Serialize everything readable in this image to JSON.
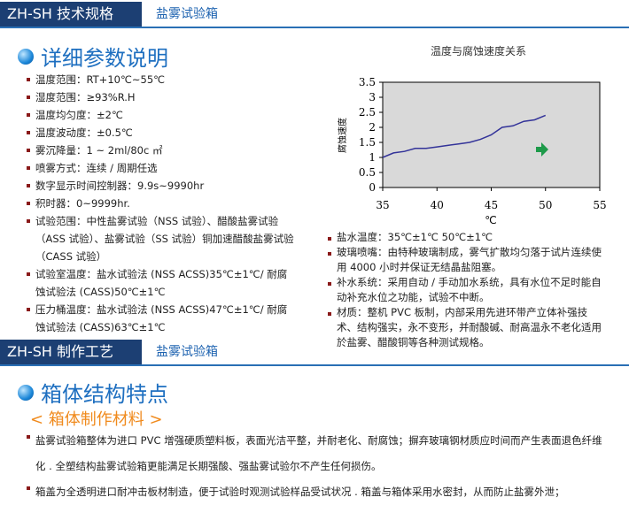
{
  "section1": {
    "tab": "ZH-SH 技术规格",
    "subtitle": "盐雾试验箱",
    "heading": "详细参数说明",
    "specs": [
      "温度范围：RT+10℃~55℃",
      "湿度范围：≥93%R.H",
      "温度均匀度：±2℃",
      "温度波动度：±0.5℃",
      "雾沉降量：1 ~ 2ml/80c ㎡",
      "喷雾方式：连续 / 周期任选",
      "数字显示时间控制器：9.9s~9990hr",
      "积时器：0~9999hr.",
      "试验范围：中性盐雾试验（NSS 试验）、醋酸盐雾试验（ASS 试验）、盐雾试验（SS 试验）铜加速醋酸盐雾试验（CASS 试验）",
      "试验室温度：盐水试验法 (NSS ACSS)35℃±1℃/ 耐腐蚀试验法 (CASS)50℃±1℃",
      "压力桶温度：盐水试验法 (NSS ACSS)47℃±1℃/ 耐腐蚀试验法 (CASS)63℃±1℃"
    ],
    "chart": {
      "type": "line",
      "title": "温度与腐蚀速度关系",
      "y_label": "腐蚀速度",
      "x_label": "℃",
      "color": "#333399",
      "x": [
        35,
        36,
        37,
        38,
        39,
        40,
        41,
        42,
        43,
        44,
        45,
        46,
        47,
        48,
        49,
        50
      ],
      "values": [
        1,
        1.15,
        1.2,
        1.3,
        1.3,
        1.35,
        1.4,
        1.45,
        1.5,
        1.6,
        1.75,
        2,
        2.05,
        2.2,
        2.25,
        2.4
      ],
      "xlim": [
        35,
        55
      ],
      "xticks": [
        35,
        40,
        45,
        50,
        55
      ],
      "ylim": [
        0,
        3.5
      ],
      "yticks": [
        0,
        0.5,
        1,
        1.5,
        2,
        2.5,
        3,
        3.5
      ]
    },
    "specs_right": [
      "盐水温度：35℃±1℃ 50℃±1℃",
      "玻璃喷嘴：由特种玻璃制成，雾气扩散均匀落于试片连续使用 4000 小时并保证无结晶盐阻塞。",
      "补水系统：采用自动 / 手动加水系统，具有水位不足时能自动补充水位之功能，试验不中断。",
      "材质：整机 PVC 板制，内部采用先进环带产立体补强技术、结构强实，永不变形，并耐酸碱、耐高温永不老化适用於盐雾、醋酸铜等各种测试规格。"
    ]
  },
  "section2": {
    "tab": "ZH-SH 制作工艺",
    "subtitle": "盐雾试验箱",
    "heading": "箱体结构特点",
    "subheading": "< 箱体制作材料 >",
    "paragraphs": [
      "盐雾试验箱整体为进口 PVC 增强硬质塑料板，表面光洁平整，并耐老化、耐腐蚀；摒弃玻璃钢材质应时间而产生表面退色纤维化 . 全塑结构盐雾试验箱更能满足长期强酸、强盐雾试验尔不产生任何损伤。",
      "箱盖为全透明进口耐冲击板材制造，便于试验时观测试验样品受试状况 . 箱盖与箱体采用水密封，从而防止盐雾外泄；"
    ]
  }
}
